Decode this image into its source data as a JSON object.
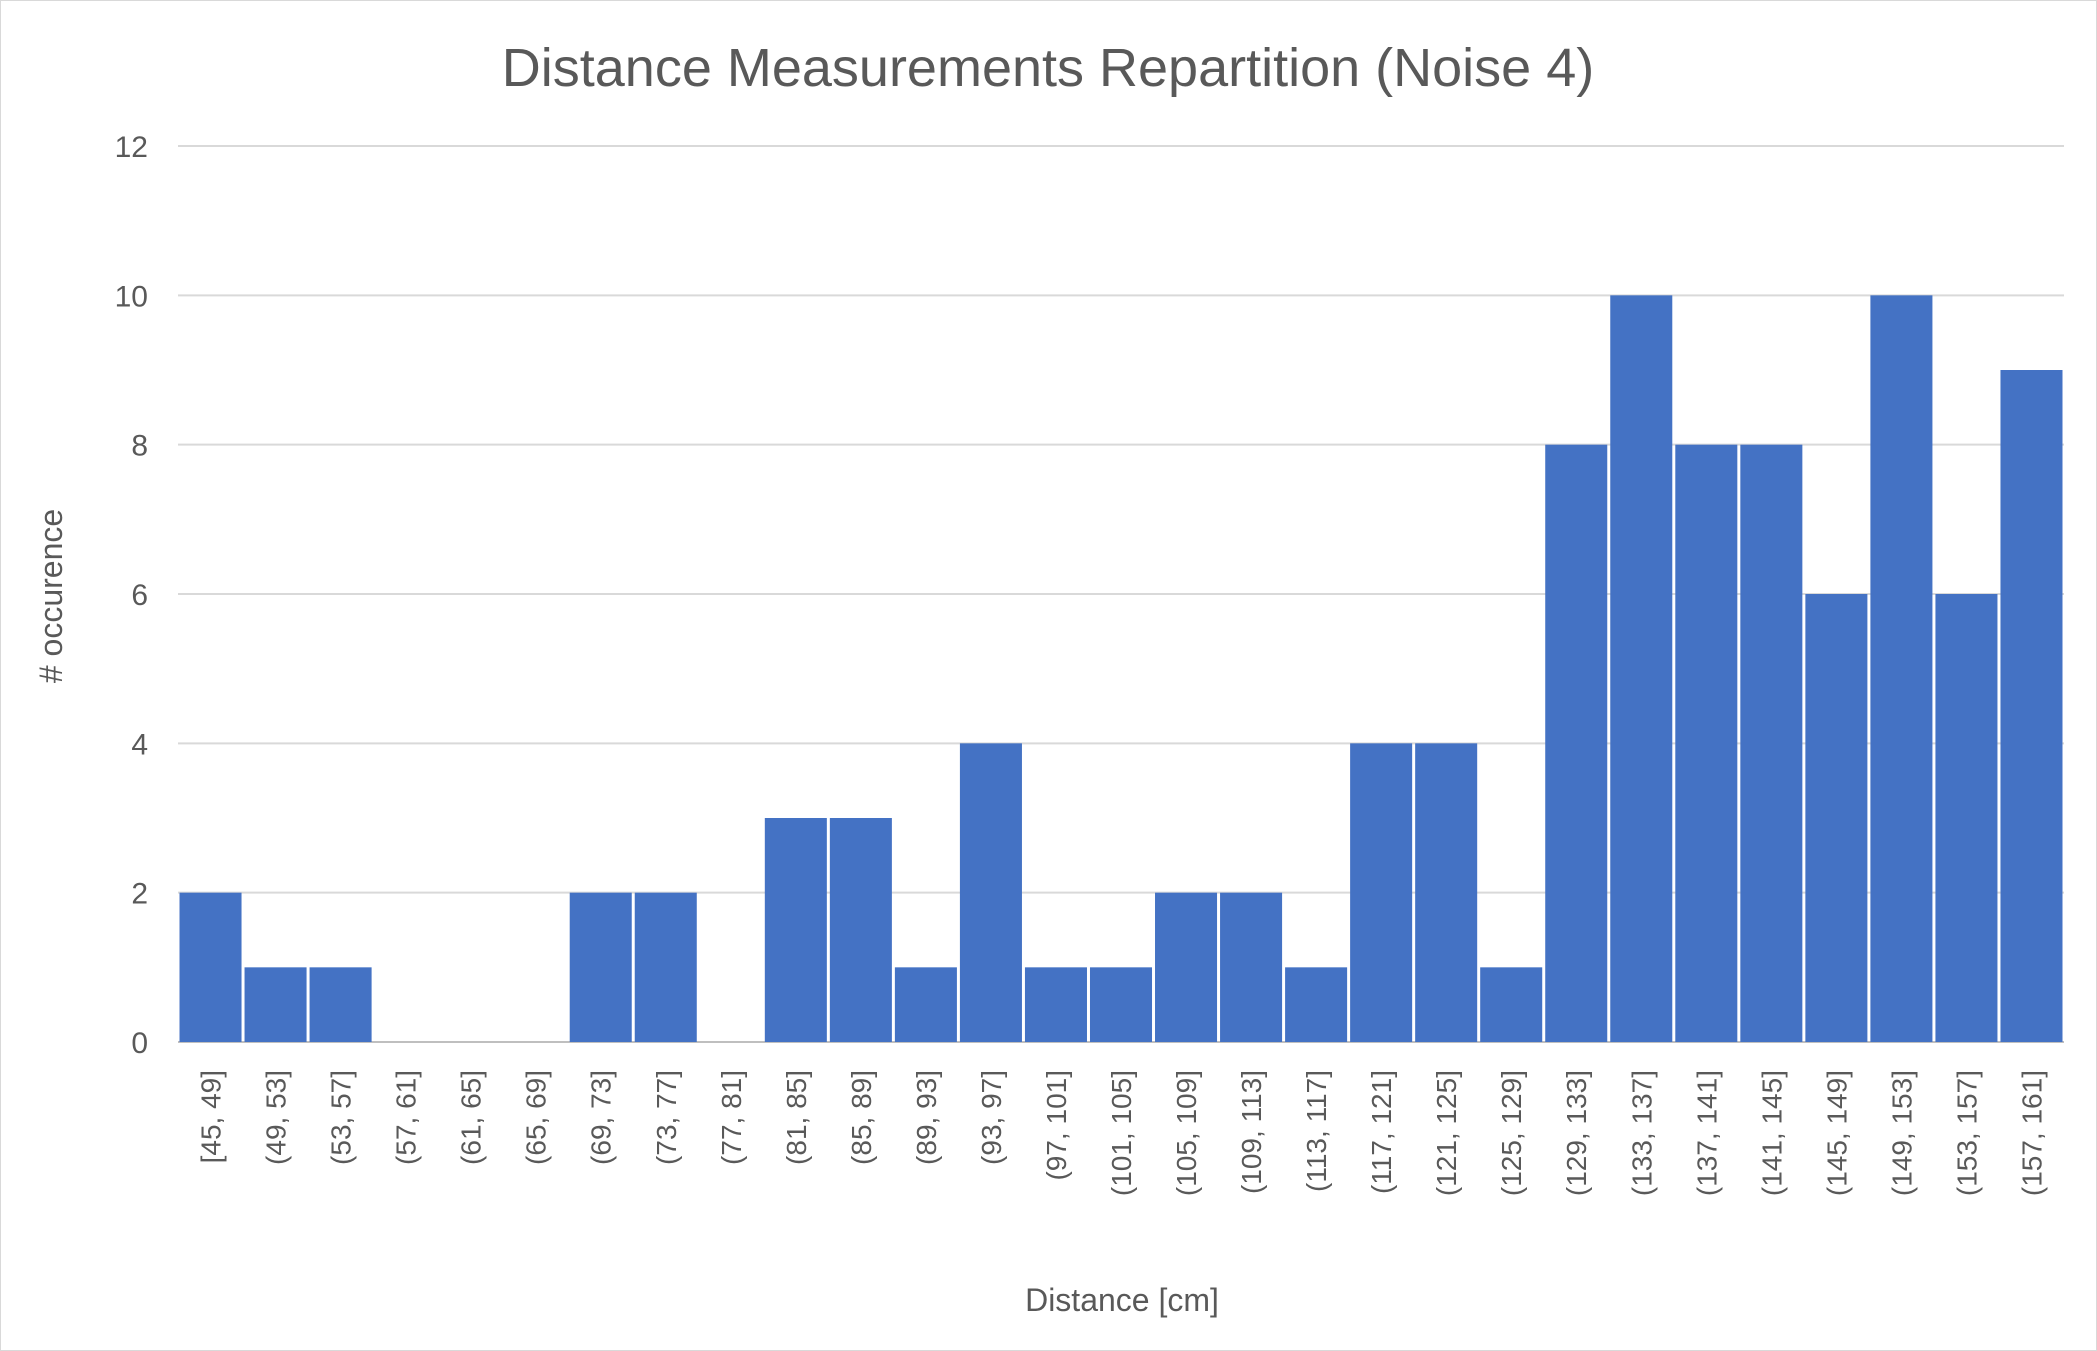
{
  "chart_data": {
    "type": "bar",
    "title": "Distance Measurements Repartition (Noise 4)",
    "xlabel": "Distance [cm]",
    "ylabel": "# occurence",
    "ylim": [
      0,
      12
    ],
    "yticks": [
      0,
      2,
      4,
      6,
      8,
      10,
      12
    ],
    "grid": true,
    "legend": "none",
    "bar_color": "#4472C4",
    "categories": [
      "[45, 49]",
      "(49, 53]",
      "(53, 57]",
      "(57, 61]",
      "(61, 65]",
      "(65, 69]",
      "(69, 73]",
      "(73, 77]",
      "(77, 81]",
      "(81, 85]",
      "(85, 89]",
      "(89, 93]",
      "(93, 97]",
      "(97, 101]",
      "(101, 105]",
      "(105, 109]",
      "(109, 113]",
      "(113, 117]",
      "(117, 121]",
      "(121, 125]",
      "(125, 129]",
      "(129, 133]",
      "(133, 137]",
      "(137, 141]",
      "(141, 145]",
      "(145, 149]",
      "(149, 153]",
      "(153, 157]",
      "(157, 161]"
    ],
    "values": [
      2,
      1,
      1,
      0,
      0,
      0,
      2,
      2,
      0,
      3,
      3,
      1,
      4,
      1,
      1,
      2,
      2,
      1,
      4,
      4,
      1,
      8,
      10,
      8,
      8,
      6,
      10,
      6,
      9
    ]
  }
}
